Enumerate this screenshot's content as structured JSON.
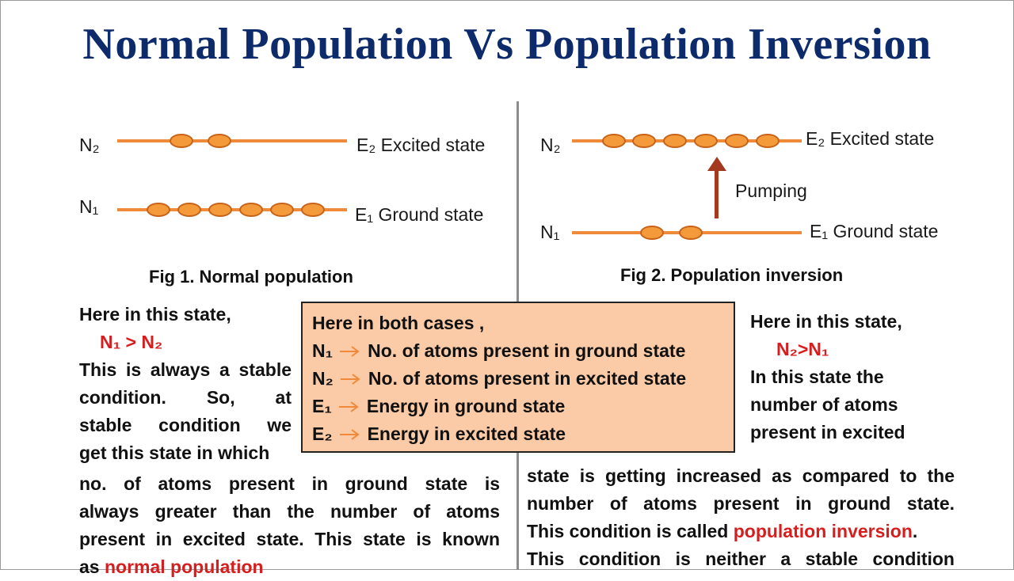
{
  "title": "Normal Population Vs Population Inversion",
  "fig1": {
    "upper_label": "N₂",
    "upper_state": "E₂  Excited state",
    "lower_label": "N₁",
    "lower_state": "E₁ Ground state",
    "upper_atoms": 2,
    "lower_atoms": 6,
    "caption": "Fig 1. Normal population"
  },
  "fig2": {
    "upper_label": "N₂",
    "upper_state": "E₂  Excited state",
    "lower_label": "N₁",
    "lower_state": "E₁ Ground state",
    "upper_atoms": 6,
    "lower_atoms": 2,
    "pump_label": "Pumping",
    "caption": "Fig 2. Population inversion"
  },
  "left_text": {
    "intro": "Here in this state,",
    "relation": "N₁ > N₂",
    "lines": [
      "This is always a stable",
      "condition.   So,   at",
      "stable  condition  we",
      "get this state in which"
    ],
    "para": [
      "no. of atoms present in ground state is",
      "always greater than the number of atoms",
      "present in excited state. This state is known"
    ],
    "last_prefix": "as ",
    "last_highlight": "normal population"
  },
  "right_text": {
    "intro": "Here in this state,",
    "relation": "N₂>N₁",
    "lines": [
      "In this state the",
      "number of atoms",
      "present in excited"
    ],
    "para": [
      "state is getting increased as compared to the",
      "number of atoms present in ground state."
    ],
    "line3_prefix": "This condition is called ",
    "line3_highlight": "population inversion",
    "line3_suffix": ".",
    "line4": "This condition is neither a stable condition"
  },
  "legend_box": {
    "heading": "Here in both cases ,",
    "rows": [
      {
        "sym": "N₁",
        "desc": "No. of atoms present in ground state"
      },
      {
        "sym": "N₂",
        "desc": "No. of atoms present in excited state"
      },
      {
        "sym": "E₁",
        "desc": "Energy in ground state"
      },
      {
        "sym": "E₂",
        "desc": "Energy in excited state"
      }
    ]
  },
  "colors": {
    "title": "#0d2a6b",
    "level": "#ee8a3a",
    "atom": "#f49a3a",
    "highlight": "#d71d1d",
    "box": "#fbcaa6",
    "pump": "#a33a1f"
  }
}
